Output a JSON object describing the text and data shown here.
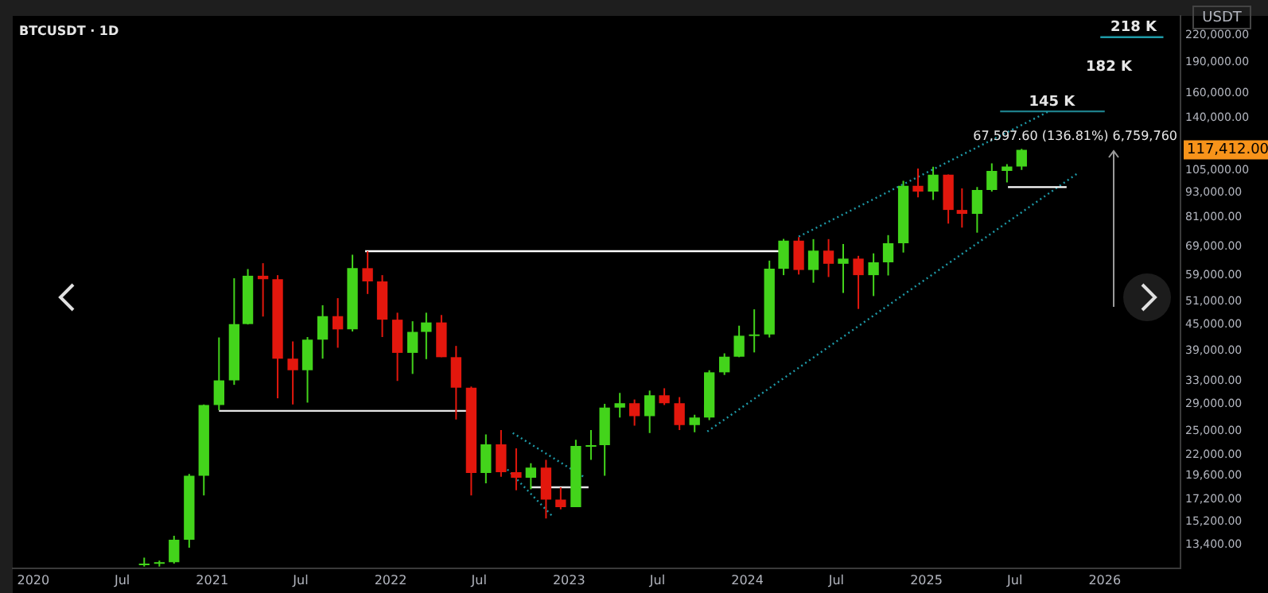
{
  "chart_data": {
    "type": "candlestick",
    "title": "BTCUSDT · 1D",
    "x": [
      "2020-08-15",
      "2020-09-15",
      "2020-10-15",
      "2020-11-15",
      "2020-12-15",
      "2021-01-15",
      "2021-02-15",
      "2021-03-15",
      "2021-04-15",
      "2021-05-15",
      "2021-06-15",
      "2021-07-15",
      "2021-08-15",
      "2021-09-15",
      "2021-10-15",
      "2021-11-15",
      "2021-12-15",
      "2022-01-15",
      "2022-02-15",
      "2022-03-15",
      "2022-04-15",
      "2022-05-15",
      "2022-06-15",
      "2022-07-15",
      "2022-08-15",
      "2022-09-15",
      "2022-10-15",
      "2022-11-15",
      "2022-12-15",
      "2023-01-15",
      "2023-02-15",
      "2023-03-15",
      "2023-04-15",
      "2023-05-15",
      "2023-06-15",
      "2023-07-15",
      "2023-08-15",
      "2023-09-15",
      "2023-10-15",
      "2023-11-15",
      "2023-12-15",
      "2024-01-15",
      "2024-02-15",
      "2024-03-15",
      "2024-04-15",
      "2024-05-15",
      "2024-06-15",
      "2024-07-15",
      "2024-08-15",
      "2024-09-15",
      "2024-10-15",
      "2024-11-15",
      "2024-12-15",
      "2025-01-15",
      "2025-02-15",
      "2025-03-15",
      "2025-04-15",
      "2025-05-15",
      "2025-06-15",
      "2025-07-15"
    ],
    "ohlc": [
      [
        12000,
        12500,
        11900,
        12100
      ],
      [
        12100,
        12300,
        11900,
        12200
      ],
      [
        12200,
        14100,
        12100,
        13800
      ],
      [
        13800,
        19800,
        13200,
        19600
      ],
      [
        19600,
        29000,
        17600,
        28900
      ],
      [
        28900,
        41900,
        28100,
        33100
      ],
      [
        33100,
        58000,
        32300,
        45100
      ],
      [
        45100,
        61000,
        45000,
        58800
      ],
      [
        58800,
        63000,
        47000,
        57700
      ],
      [
        57700,
        59000,
        30000,
        37300
      ],
      [
        37300,
        41000,
        29000,
        35000
      ],
      [
        35000,
        42000,
        29300,
        41400
      ],
      [
        41400,
        50000,
        37300,
        47100
      ],
      [
        47100,
        52000,
        39600,
        43800
      ],
      [
        43800,
        66000,
        43300,
        61300
      ],
      [
        61300,
        67300,
        53200,
        57000
      ],
      [
        57000,
        59000,
        42000,
        46200
      ],
      [
        46200,
        48000,
        33000,
        38500
      ],
      [
        38500,
        45800,
        34300,
        43200
      ],
      [
        43200,
        48000,
        37200,
        45500
      ],
      [
        45500,
        47400,
        37600,
        37600
      ],
      [
        37600,
        40000,
        26700,
        31800
      ],
      [
        31800,
        32000,
        17600,
        19900
      ],
      [
        19900,
        24600,
        18800,
        23300
      ],
      [
        23300,
        25200,
        19500,
        20000
      ],
      [
        20000,
        22800,
        18100,
        19400
      ],
      [
        19400,
        21000,
        18200,
        20500
      ],
      [
        20500,
        21400,
        15500,
        17200
      ],
      [
        17200,
        18400,
        16300,
        16500
      ],
      [
        16500,
        23900,
        16500,
        23100
      ],
      [
        23100,
        25200,
        21400,
        23200
      ],
      [
        23200,
        29100,
        19600,
        28500
      ],
      [
        28500,
        30900,
        27000,
        29200
      ],
      [
        29200,
        29800,
        25800,
        27200
      ],
      [
        27200,
        31300,
        24800,
        30500
      ],
      [
        30500,
        31700,
        28900,
        29200
      ],
      [
        29200,
        30200,
        25200,
        25900
      ],
      [
        25900,
        27400,
        24900,
        27000
      ],
      [
        27000,
        35000,
        26600,
        34600
      ],
      [
        34600,
        38400,
        34100,
        37700
      ],
      [
        37700,
        44700,
        37600,
        42300
      ],
      [
        42300,
        48900,
        38600,
        42600
      ],
      [
        42600,
        63900,
        41900,
        61100
      ],
      [
        61100,
        72000,
        59000,
        71300
      ],
      [
        71300,
        72700,
        59200,
        60700
      ],
      [
        60700,
        71900,
        56600,
        67500
      ],
      [
        67500,
        71900,
        58400,
        62800
      ],
      [
        62800,
        70000,
        53500,
        64600
      ],
      [
        64600,
        65600,
        49000,
        59000
      ],
      [
        59000,
        66500,
        52600,
        63300
      ],
      [
        63300,
        73500,
        58900,
        70300
      ],
      [
        70300,
        99000,
        66800,
        96400
      ],
      [
        96400,
        106000,
        90500,
        93400
      ],
      [
        93400,
        107000,
        89200,
        102400
      ],
      [
        102400,
        102500,
        78300,
        84400
      ],
      [
        84400,
        95000,
        76600,
        82600
      ],
      [
        82600,
        95700,
        74500,
        94200
      ],
      [
        94200,
        109000,
        93400,
        104600
      ],
      [
        104600,
        108500,
        98200,
        107100
      ],
      [
        107100,
        118000,
        105100,
        117412
      ]
    ],
    "colors": [
      "#43d41b",
      "#43d41b",
      "#43d41b",
      "#43d41b",
      "#43d41b",
      "#43d41b",
      "#43d41b",
      "#43d41b",
      "#e3170d",
      "#e3170d",
      "#e3170d",
      "#43d41b",
      "#43d41b",
      "#e3170d",
      "#43d41b",
      "#e3170d",
      "#e3170d",
      "#e3170d",
      "#43d41b",
      "#43d41b",
      "#e3170d",
      "#e3170d",
      "#e3170d",
      "#43d41b",
      "#e3170d",
      "#e3170d",
      "#43d41b",
      "#e3170d",
      "#e3170d",
      "#43d41b",
      "#43d41b",
      "#43d41b",
      "#43d41b",
      "#e3170d",
      "#43d41b",
      "#e3170d",
      "#e3170d",
      "#43d41b",
      "#43d41b",
      "#43d41b",
      "#43d41b",
      "#43d41b",
      "#43d41b",
      "#43d41b",
      "#e3170d",
      "#43d41b",
      "#e3170d",
      "#43d41b",
      "#e3170d",
      "#43d41b",
      "#43d41b",
      "#43d41b",
      "#e3170d",
      "#43d41b",
      "#e3170d",
      "#e3170d",
      "#43d41b",
      "#43d41b",
      "#43d41b",
      "#43d41b"
    ],
    "series": [
      {
        "type": "line",
        "color": "#e6e6e6",
        "x": [
          "2021-01-15",
          "2022-06-15"
        ],
        "values": [
          28000,
          28000
        ]
      },
      {
        "type": "line",
        "color": "#ffffff",
        "x": [
          "2021-11-10",
          "2024-03-10"
        ],
        "values": [
          67300,
          67300
        ]
      },
      {
        "type": "line",
        "color": "#e6e6e6",
        "x": [
          "2022-10-15",
          "2023-02-10"
        ],
        "values": [
          18400,
          18400
        ]
      },
      {
        "type": "line",
        "color": "#ffffff",
        "x": [
          "2025-06-17",
          "2025-10-15"
        ],
        "values": [
          95700,
          95700
        ]
      },
      {
        "type": "line",
        "color": "#1e9aa8",
        "line_style": "dotted",
        "x": [
          "2024-04-15",
          "2025-09-06"
        ],
        "values": [
          72900,
          144500
        ]
      },
      {
        "type": "line",
        "color": "#1e9aa8",
        "line_style": "dotted",
        "x": [
          "2023-10-11",
          "2025-11-08"
        ],
        "values": [
          25000,
          103500
        ]
      },
      {
        "type": "line",
        "color": "#1e9aa8",
        "line_style": "dotted",
        "x": [
          "2022-09-08",
          "2023-02-03"
        ],
        "values": [
          24800,
          19400
        ]
      },
      {
        "type": "line",
        "color": "#1e9aa8",
        "line_style": "dotted",
        "x": [
          "2022-08-28",
          "2022-11-28"
        ],
        "values": [
          20300,
          15700
        ]
      },
      {
        "type": "line",
        "color": "#1e7f8a",
        "x": [
          "2025-06-01",
          "2026-01-01"
        ],
        "values": [
          145000,
          145000
        ]
      },
      {
        "type": "line",
        "color": "#1e9aa8",
        "x": [
          "2025-12-23",
          "2026-05-01"
        ],
        "values": [
          218000,
          218000
        ]
      }
    ],
    "annotations": [
      {
        "text": "218 K",
        "x": "2026-03-01",
        "y": 218000
      },
      {
        "text": "145 K",
        "x": "2025-09-15",
        "y": 145000
      },
      "USDT",
      "182 K",
      "67,597.60 (136.81%) 6,759,760",
      "117,412.00"
    ],
    "xlim": [
      "2019-11-20",
      "2026-06-05"
    ],
    "xticks": [
      {
        "value": "2020-01-01",
        "label": "2020"
      },
      {
        "value": "2020-07-01",
        "label": "Jul"
      },
      {
        "value": "2021-01-01",
        "label": "2021"
      },
      {
        "value": "2021-07-01",
        "label": "Jul"
      },
      {
        "value": "2022-01-01",
        "label": "2022"
      },
      {
        "value": "2022-07-01",
        "label": "Jul"
      },
      {
        "value": "2023-01-01",
        "label": "2023"
      },
      {
        "value": "2023-07-01",
        "label": "Jul"
      },
      {
        "value": "2024-01-01",
        "label": "2024"
      },
      {
        "value": "2024-07-01",
        "label": "Jul"
      },
      {
        "value": "2025-01-01",
        "label": "2025"
      },
      {
        "value": "2025-07-01",
        "label": "Jul"
      },
      {
        "value": "2026-01-01",
        "label": "2026"
      }
    ],
    "ylim": [
      11800,
      245000
    ],
    "log": true,
    "yticks": [
      {
        "value": 13400,
        "label": "13,400.00"
      },
      {
        "value": 15200,
        "label": "15,200.00"
      },
      {
        "value": 17200,
        "label": "17,200.00"
      },
      {
        "value": 19600,
        "label": "19,600.00"
      },
      {
        "value": 22000,
        "label": "22,000.00"
      },
      {
        "value": 25000,
        "label": "25,000.00"
      },
      {
        "value": 29000,
        "label": "29,000.00"
      },
      {
        "value": 33000,
        "label": "33,000.00"
      },
      {
        "value": 39000,
        "label": "39,000.00"
      },
      {
        "value": 45000,
        "label": "45,000.00"
      },
      {
        "value": 51000,
        "label": "51,000.00"
      },
      {
        "value": 59000,
        "label": "59,000.00"
      },
      {
        "value": 69000,
        "label": "69,000.00"
      },
      {
        "value": 81000,
        "label": "81,000.00"
      },
      {
        "value": 93000,
        "label": "93,000.00"
      },
      {
        "value": 105000,
        "label": "105,000.00"
      },
      {
        "value": 140000,
        "label": "140,000.00"
      },
      {
        "value": 160000,
        "label": "160,000.00"
      },
      {
        "value": 190000,
        "label": "190,000.00"
      },
      {
        "value": 220000,
        "label": "220,000.00"
      }
    ],
    "grid": false,
    "legend": false
  }
}
